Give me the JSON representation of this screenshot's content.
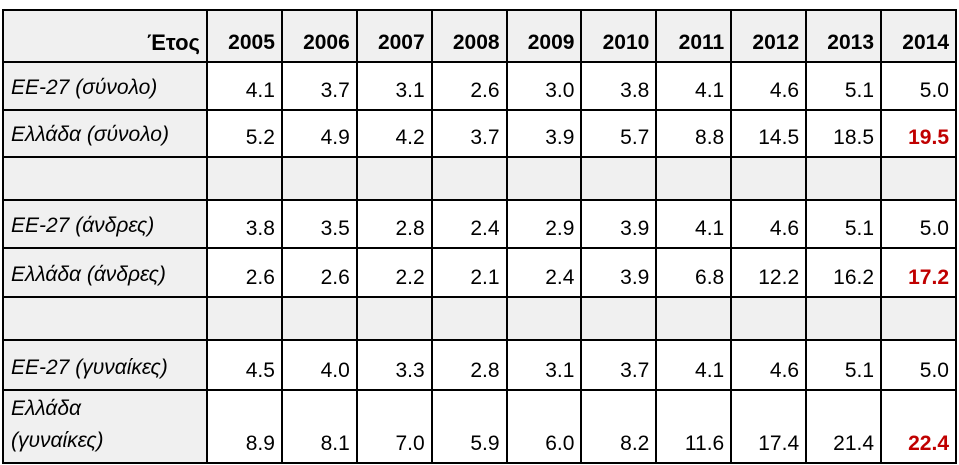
{
  "table": {
    "header_label": "Έτος",
    "years": [
      "2005",
      "2006",
      "2007",
      "2008",
      "2009",
      "2010",
      "2011",
      "2012",
      "2013",
      "2014"
    ],
    "rows": [
      {
        "kind": "data",
        "label": "ΕΕ-27 (σύνολο)",
        "values": [
          "4.1",
          "3.7",
          "3.1",
          "2.6",
          "3.0",
          "3.8",
          "4.1",
          "4.6",
          "5.1",
          "5.0"
        ],
        "highlight_last": false
      },
      {
        "kind": "data",
        "label": "Ελλάδα (σύνολο)",
        "values": [
          "5.2",
          "4.9",
          "4.2",
          "3.7",
          "3.9",
          "5.7",
          "8.8",
          "14.5",
          "18.5",
          "19.5"
        ],
        "highlight_last": true
      },
      {
        "kind": "spacer"
      },
      {
        "kind": "data",
        "label": "ΕΕ-27 (άνδρες)",
        "values": [
          "3.8",
          "3.5",
          "2.8",
          "2.4",
          "2.9",
          "3.9",
          "4.1",
          "4.6",
          "5.1",
          "5.0"
        ],
        "highlight_last": false
      },
      {
        "kind": "data",
        "label": "Ελλάδα (άνδρες)",
        "values": [
          "2.6",
          "2.6",
          "2.2",
          "2.1",
          "2.4",
          "3.9",
          "6.8",
          "12.2",
          "16.2",
          "17.2"
        ],
        "highlight_last": true
      },
      {
        "kind": "spacer"
      },
      {
        "kind": "data",
        "label": "ΕΕ-27 (γυναίκες)",
        "values": [
          "4.5",
          "4.0",
          "3.3",
          "2.8",
          "3.1",
          "3.7",
          "4.1",
          "4.6",
          "5.1",
          "5.0"
        ],
        "highlight_last": false
      },
      {
        "kind": "data",
        "label": "Ελλάδα\n(γυναίκες)",
        "values": [
          "8.9",
          "8.1",
          "7.0",
          "5.9",
          "6.0",
          "8.2",
          "11.6",
          "17.4",
          "21.4",
          "22.4"
        ],
        "highlight_last": true
      }
    ]
  },
  "colors": {
    "highlight_red": "#c00000",
    "shaded_bg": "#f0f0f0",
    "border": "#000000",
    "cell_bg": "#ffffff"
  },
  "chart_data": {
    "type": "table",
    "title": "",
    "categories": [
      "2005",
      "2006",
      "2007",
      "2008",
      "2009",
      "2010",
      "2011",
      "2012",
      "2013",
      "2014"
    ],
    "row_header": "Έτος",
    "series": [
      {
        "name": "ΕΕ-27 (σύνολο)",
        "values": [
          4.1,
          3.7,
          3.1,
          2.6,
          3.0,
          3.8,
          4.1,
          4.6,
          5.1,
          5.0
        ]
      },
      {
        "name": "Ελλάδα (σύνολο)",
        "values": [
          5.2,
          4.9,
          4.2,
          3.7,
          3.9,
          5.7,
          8.8,
          14.5,
          18.5,
          19.5
        ]
      },
      {
        "name": "ΕΕ-27 (άνδρες)",
        "values": [
          3.8,
          3.5,
          2.8,
          2.4,
          2.9,
          3.9,
          4.1,
          4.6,
          5.1,
          5.0
        ]
      },
      {
        "name": "Ελλάδα (άνδρες)",
        "values": [
          2.6,
          2.6,
          2.2,
          2.1,
          2.4,
          3.9,
          6.8,
          12.2,
          16.2,
          17.2
        ]
      },
      {
        "name": "ΕΕ-27 (γυναίκες)",
        "values": [
          4.5,
          4.0,
          3.3,
          2.8,
          3.1,
          3.7,
          4.1,
          4.6,
          5.1,
          5.0
        ]
      },
      {
        "name": "Ελλάδα (γυναίκες)",
        "values": [
          8.9,
          8.1,
          7.0,
          5.9,
          6.0,
          8.2,
          11.6,
          17.4,
          21.4,
          22.4
        ]
      }
    ],
    "annotations": [
      "2014 values for Ελλάδα rows highlighted in red bold: 19.5, 17.2, 22.4"
    ],
    "grid": true,
    "legend_position": "none"
  }
}
